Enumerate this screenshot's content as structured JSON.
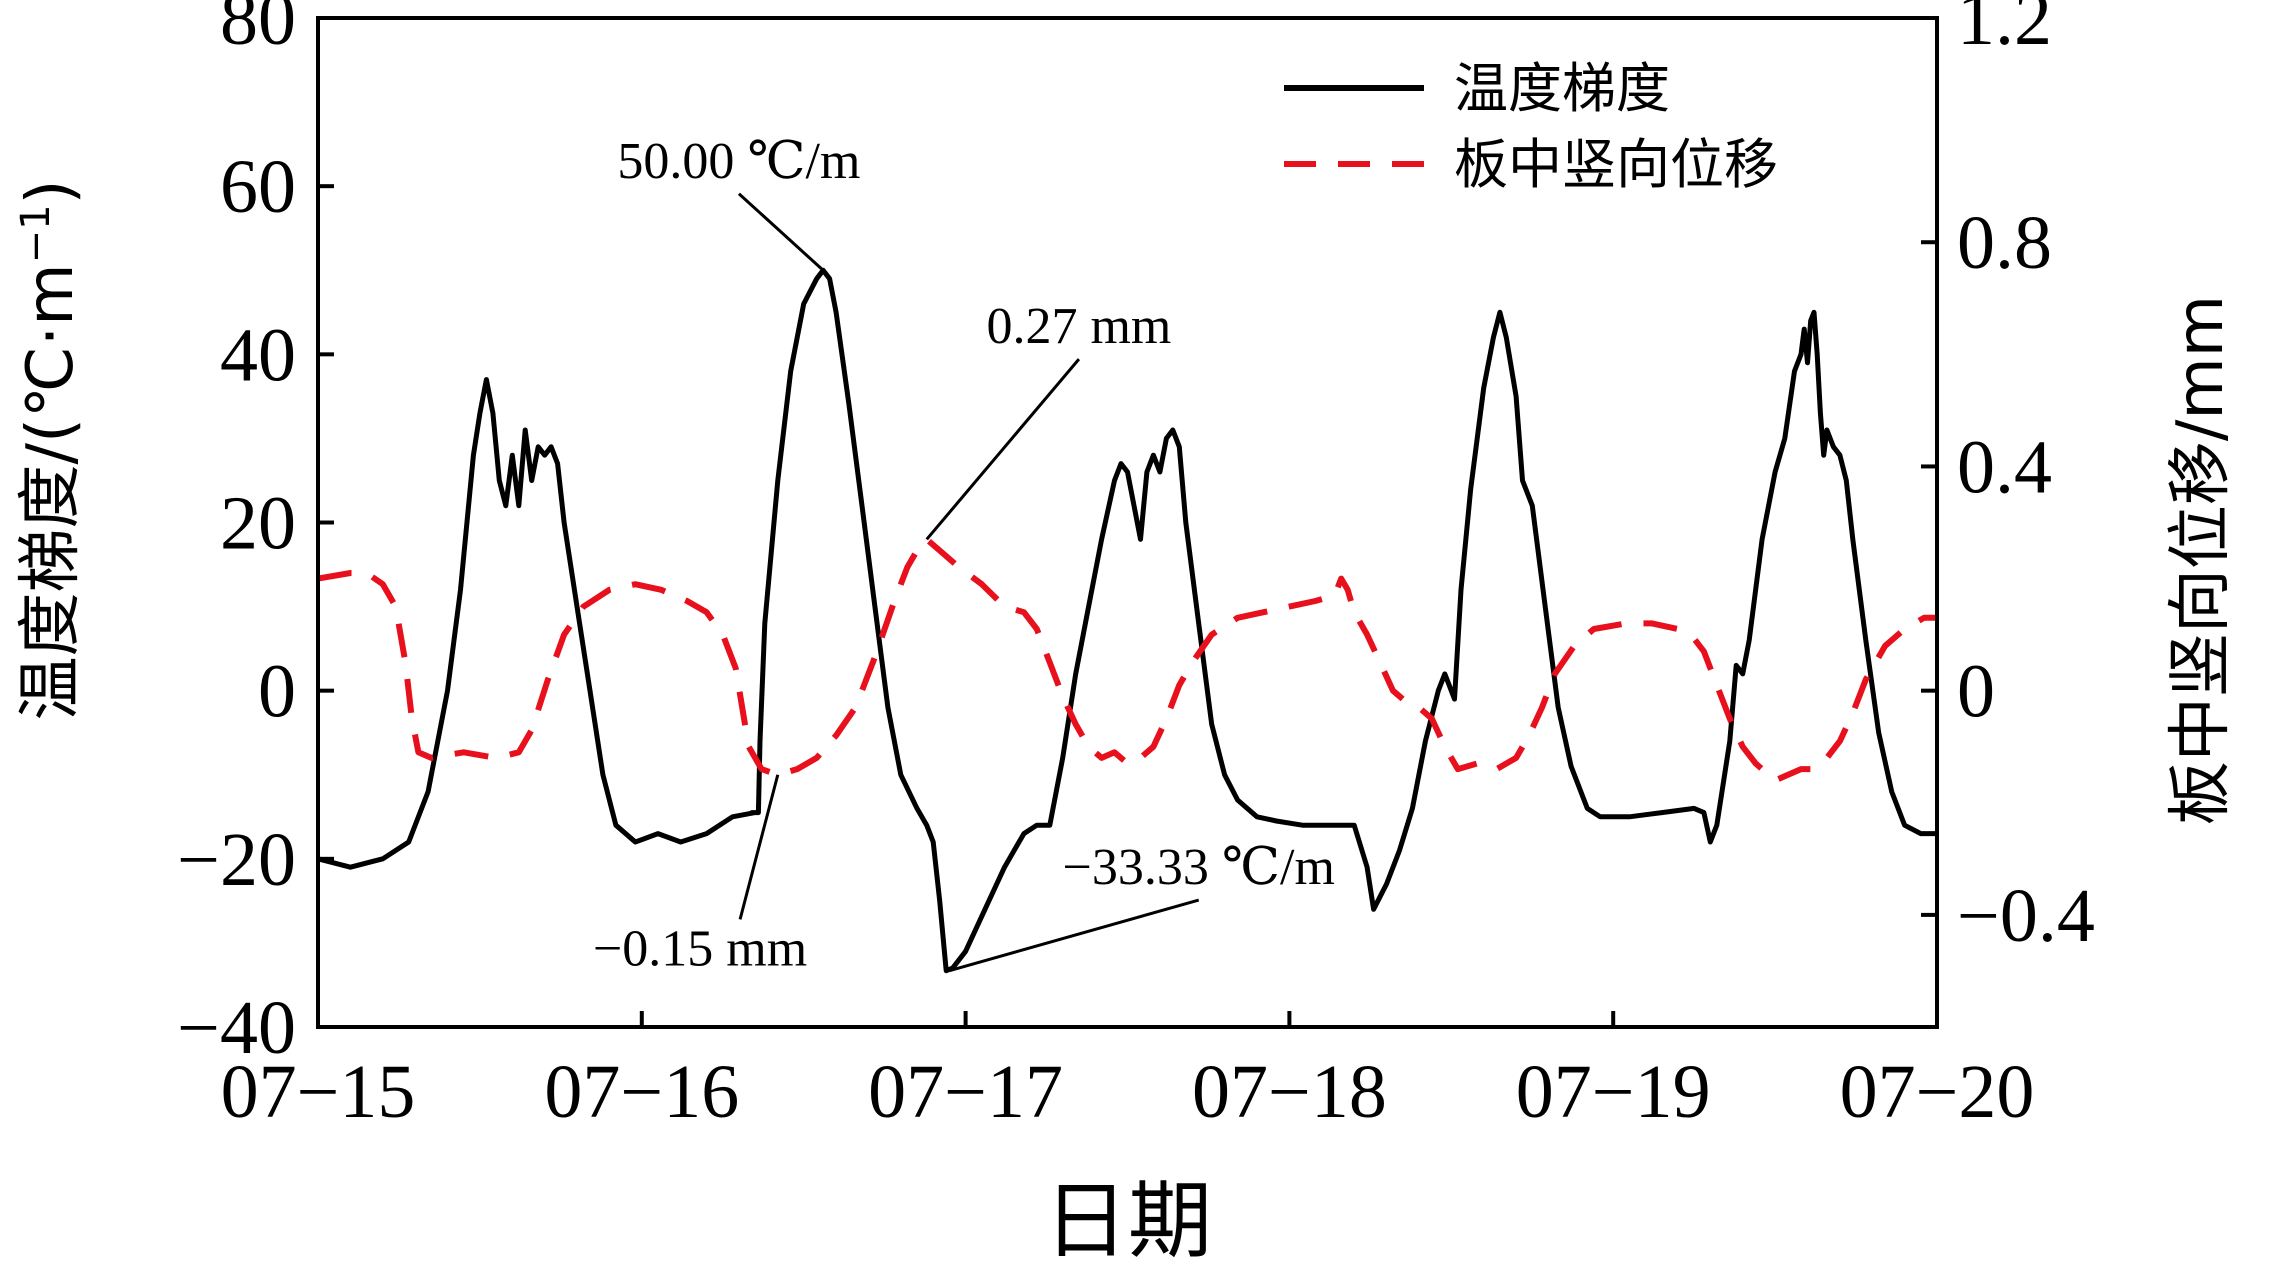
{
  "chart_data": {
    "type": "line",
    "xlabel": "日期",
    "ylabel_left": "温度梯度/(℃·m⁻¹)",
    "ylabel_left_parts": {
      "main": "温度梯度/(℃·m",
      "sup": "−1",
      "close": ")"
    },
    "ylabel_right": "板中竖向位移/mm",
    "x_ticks": [
      "07−15",
      "07−16",
      "07−17",
      "07−18",
      "07−19",
      "07−20"
    ],
    "xlim": [
      0,
      5
    ],
    "ylim_left": [
      -40,
      80
    ],
    "y_ticks_left": [
      "−40",
      "−20",
      "0",
      "20",
      "40",
      "60",
      "80"
    ],
    "y_tick_values_left": [
      -40,
      -20,
      0,
      20,
      40,
      60,
      80
    ],
    "ylim_right": [
      -0.6,
      1.2
    ],
    "y_ticks_right": [
      "−0.4",
      "0",
      "0.4",
      "0.8",
      "1.2"
    ],
    "y_tick_values_right": [
      -0.4,
      0,
      0.4,
      0.8,
      1.2
    ],
    "legend": {
      "position": "top-right",
      "entries": [
        "温度梯度",
        "板中竖向位移"
      ]
    },
    "series": [
      {
        "name": "温度梯度",
        "axis": "left",
        "color": "#000000",
        "style": "solid",
        "points": [
          [
            0.0,
            -20.0
          ],
          [
            0.1,
            -21.0
          ],
          [
            0.2,
            -20.0
          ],
          [
            0.28,
            -18.0
          ],
          [
            0.34,
            -12.0
          ],
          [
            0.4,
            0.0
          ],
          [
            0.44,
            12.0
          ],
          [
            0.48,
            28.0
          ],
          [
            0.5,
            33.0
          ],
          [
            0.52,
            37.0
          ],
          [
            0.54,
            33.0
          ],
          [
            0.56,
            25.0
          ],
          [
            0.58,
            22.0
          ],
          [
            0.6,
            28.0
          ],
          [
            0.62,
            22.0
          ],
          [
            0.64,
            31.0
          ],
          [
            0.66,
            25.0
          ],
          [
            0.68,
            29.0
          ],
          [
            0.7,
            28.0
          ],
          [
            0.72,
            29.0
          ],
          [
            0.74,
            27.0
          ],
          [
            0.76,
            20.0
          ],
          [
            0.8,
            10.0
          ],
          [
            0.84,
            0.0
          ],
          [
            0.88,
            -10.0
          ],
          [
            0.92,
            -16.0
          ],
          [
            0.98,
            -18.0
          ],
          [
            1.05,
            -17.0
          ],
          [
            1.12,
            -18.0
          ],
          [
            1.2,
            -17.0
          ],
          [
            1.28,
            -15.0
          ],
          [
            1.35,
            -14.5
          ],
          [
            1.34,
            -14.5
          ],
          [
            1.36,
            -14.5
          ],
          [
            1.365,
            -6.0
          ],
          [
            1.38,
            8.0
          ],
          [
            1.42,
            25.0
          ],
          [
            1.46,
            38.0
          ],
          [
            1.5,
            46.0
          ],
          [
            1.54,
            49.0
          ],
          [
            1.56,
            50.0
          ],
          [
            1.58,
            49.0
          ],
          [
            1.6,
            45.0
          ],
          [
            1.64,
            34.0
          ],
          [
            1.68,
            22.0
          ],
          [
            1.72,
            10.0
          ],
          [
            1.76,
            -2.0
          ],
          [
            1.8,
            -10.0
          ],
          [
            1.85,
            -14.0
          ],
          [
            1.88,
            -16.0
          ],
          [
            1.9,
            -18.0
          ],
          [
            1.92,
            -25.0
          ],
          [
            1.94,
            -33.3
          ],
          [
            1.96,
            -33.0
          ],
          [
            2.0,
            -31.0
          ],
          [
            2.06,
            -26.0
          ],
          [
            2.12,
            -21.0
          ],
          [
            2.18,
            -17.0
          ],
          [
            2.22,
            -16.0
          ],
          [
            2.26,
            -16.0
          ],
          [
            2.3,
            -8.0
          ],
          [
            2.34,
            2.0
          ],
          [
            2.38,
            10.0
          ],
          [
            2.42,
            18.0
          ],
          [
            2.46,
            25.0
          ],
          [
            2.48,
            27.0
          ],
          [
            2.5,
            26.0
          ],
          [
            2.52,
            22.0
          ],
          [
            2.54,
            18.0
          ],
          [
            2.56,
            26.0
          ],
          [
            2.58,
            28.0
          ],
          [
            2.6,
            26.0
          ],
          [
            2.62,
            30.0
          ],
          [
            2.64,
            31.0
          ],
          [
            2.66,
            29.0
          ],
          [
            2.68,
            20.0
          ],
          [
            2.72,
            8.0
          ],
          [
            2.76,
            -4.0
          ],
          [
            2.8,
            -10.0
          ],
          [
            2.84,
            -13.0
          ],
          [
            2.9,
            -15.0
          ],
          [
            2.96,
            -15.5
          ],
          [
            3.04,
            -16.0
          ],
          [
            3.12,
            -16.0
          ],
          [
            3.2,
            -16.0
          ],
          [
            3.24,
            -21.0
          ],
          [
            3.26,
            -26.0
          ],
          [
            3.3,
            -23.0
          ],
          [
            3.34,
            -19.0
          ],
          [
            3.38,
            -14.0
          ],
          [
            3.42,
            -6.0
          ],
          [
            3.46,
            0.0
          ],
          [
            3.48,
            2.0
          ],
          [
            3.5,
            0.0
          ],
          [
            3.51,
            -1.0
          ],
          [
            3.53,
            12.0
          ],
          [
            3.56,
            24.0
          ],
          [
            3.6,
            36.0
          ],
          [
            3.63,
            42.0
          ],
          [
            3.65,
            45.0
          ],
          [
            3.67,
            42.0
          ],
          [
            3.7,
            35.0
          ],
          [
            3.72,
            25.0
          ],
          [
            3.75,
            22.0
          ],
          [
            3.79,
            10.0
          ],
          [
            3.83,
            -2.0
          ],
          [
            3.87,
            -9.0
          ],
          [
            3.92,
            -14.0
          ],
          [
            3.96,
            -15.0
          ],
          [
            4.05,
            -15.0
          ],
          [
            4.15,
            -14.5
          ],
          [
            4.25,
            -14.0
          ],
          [
            4.28,
            -14.5
          ],
          [
            4.3,
            -18.0
          ],
          [
            4.32,
            -16.0
          ],
          [
            4.36,
            -6.0
          ],
          [
            4.38,
            3.0
          ],
          [
            4.4,
            2.0
          ],
          [
            4.42,
            6.0
          ],
          [
            4.46,
            18.0
          ],
          [
            4.5,
            26.0
          ],
          [
            4.53,
            30.0
          ],
          [
            4.56,
            38.0
          ],
          [
            4.58,
            40.0
          ],
          [
            4.59,
            43.0
          ],
          [
            4.6,
            39.0
          ],
          [
            4.61,
            44.0
          ],
          [
            4.62,
            45.0
          ],
          [
            4.63,
            40.0
          ],
          [
            4.64,
            33.0
          ],
          [
            4.65,
            28.0
          ],
          [
            4.66,
            31.0
          ],
          [
            4.68,
            29.0
          ],
          [
            4.7,
            28.0
          ],
          [
            4.72,
            25.0
          ],
          [
            4.74,
            18.0
          ],
          [
            4.78,
            6.0
          ],
          [
            4.82,
            -5.0
          ],
          [
            4.86,
            -12.0
          ],
          [
            4.9,
            -16.0
          ],
          [
            4.95,
            -17.0
          ],
          [
            5.0,
            -17.0
          ]
        ]
      },
      {
        "name": "板中竖向位移",
        "axis": "right",
        "color": "#e8101c",
        "style": "dashed",
        "points": [
          [
            0.0,
            0.2
          ],
          [
            0.1,
            0.21
          ],
          [
            0.15,
            0.21
          ],
          [
            0.2,
            0.19
          ],
          [
            0.24,
            0.15
          ],
          [
            0.27,
            0.05
          ],
          [
            0.29,
            -0.05
          ],
          [
            0.31,
            -0.11
          ],
          [
            0.35,
            -0.12
          ],
          [
            0.45,
            -0.11
          ],
          [
            0.55,
            -0.12
          ],
          [
            0.62,
            -0.11
          ],
          [
            0.66,
            -0.07
          ],
          [
            0.71,
            0.02
          ],
          [
            0.76,
            0.1
          ],
          [
            0.82,
            0.15
          ],
          [
            0.9,
            0.18
          ],
          [
            0.98,
            0.19
          ],
          [
            1.06,
            0.18
          ],
          [
            1.14,
            0.16
          ],
          [
            1.2,
            0.14
          ],
          [
            1.25,
            0.1
          ],
          [
            1.29,
            0.04
          ],
          [
            1.31,
            -0.03
          ],
          [
            1.33,
            -0.1
          ],
          [
            1.37,
            -0.14
          ],
          [
            1.42,
            -0.15
          ],
          [
            1.48,
            -0.14
          ],
          [
            1.54,
            -0.12
          ],
          [
            1.6,
            -0.08
          ],
          [
            1.66,
            -0.03
          ],
          [
            1.72,
            0.06
          ],
          [
            1.78,
            0.16
          ],
          [
            1.82,
            0.22
          ],
          [
            1.86,
            0.26
          ],
          [
            1.88,
            0.27
          ],
          [
            1.92,
            0.25
          ],
          [
            1.98,
            0.22
          ],
          [
            2.05,
            0.19
          ],
          [
            2.12,
            0.15
          ],
          [
            2.18,
            0.14
          ],
          [
            2.22,
            0.11
          ],
          [
            2.26,
            0.05
          ],
          [
            2.3,
            -0.01
          ],
          [
            2.34,
            -0.06
          ],
          [
            2.38,
            -0.1
          ],
          [
            2.42,
            -0.12
          ],
          [
            2.46,
            -0.11
          ],
          [
            2.5,
            -0.13
          ],
          [
            2.54,
            -0.12
          ],
          [
            2.58,
            -0.1
          ],
          [
            2.62,
            -0.05
          ],
          [
            2.66,
            0.01
          ],
          [
            2.7,
            0.05
          ],
          [
            2.76,
            0.1
          ],
          [
            2.84,
            0.13
          ],
          [
            2.92,
            0.14
          ],
          [
            3.0,
            0.15
          ],
          [
            3.08,
            0.16
          ],
          [
            3.14,
            0.17
          ],
          [
            3.16,
            0.2
          ],
          [
            3.18,
            0.18
          ],
          [
            3.2,
            0.14
          ],
          [
            3.24,
            0.1
          ],
          [
            3.28,
            0.05
          ],
          [
            3.32,
            0.0
          ],
          [
            3.36,
            -0.02
          ],
          [
            3.4,
            -0.03
          ],
          [
            3.44,
            -0.05
          ],
          [
            3.48,
            -0.1
          ],
          [
            3.52,
            -0.14
          ],
          [
            3.58,
            -0.13
          ],
          [
            3.64,
            -0.14
          ],
          [
            3.7,
            -0.12
          ],
          [
            3.74,
            -0.08
          ],
          [
            3.78,
            -0.03
          ],
          [
            3.82,
            0.03
          ],
          [
            3.88,
            0.08
          ],
          [
            3.94,
            0.11
          ],
          [
            4.04,
            0.12
          ],
          [
            4.12,
            0.12
          ],
          [
            4.2,
            0.11
          ],
          [
            4.24,
            0.1
          ],
          [
            4.28,
            0.07
          ],
          [
            4.32,
            0.01
          ],
          [
            4.36,
            -0.05
          ],
          [
            4.4,
            -0.1
          ],
          [
            4.44,
            -0.13
          ],
          [
            4.5,
            -0.16
          ],
          [
            4.54,
            -0.15
          ],
          [
            4.58,
            -0.14
          ],
          [
            4.62,
            -0.14
          ],
          [
            4.66,
            -0.12
          ],
          [
            4.7,
            -0.09
          ],
          [
            4.74,
            -0.04
          ],
          [
            4.78,
            0.02
          ],
          [
            4.84,
            0.08
          ],
          [
            4.9,
            0.11
          ],
          [
            4.96,
            0.13
          ],
          [
            5.0,
            0.13
          ]
        ]
      }
    ],
    "annotations": [
      {
        "text": "50.00 ℃/m",
        "axis": "left",
        "point": [
          1.56,
          50.0
        ],
        "label_pos": [
          1.3,
          61.0
        ]
      },
      {
        "text": "0.27 mm",
        "axis": "right",
        "point": [
          1.88,
          0.27
        ],
        "label_pos": [
          2.35,
          0.62
        ]
      },
      {
        "text": "−0.15 mm",
        "axis": "right",
        "point": [
          1.42,
          -0.15
        ],
        "label_pos": [
          1.18,
          -0.49
        ]
      },
      {
        "text": "−33.33 ℃/m",
        "axis": "left",
        "point": [
          1.95,
          -33.3
        ],
        "label_pos": [
          2.72,
          -23.0
        ]
      }
    ]
  }
}
